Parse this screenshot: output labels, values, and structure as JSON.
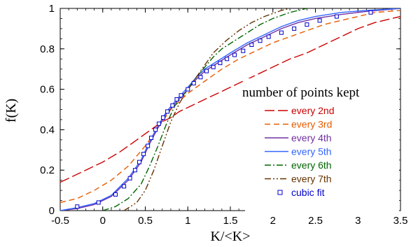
{
  "chart_data": {
    "type": "line",
    "xlabel": "K/<K>",
    "ylabel": "f(K)",
    "xlim": [
      -0.5,
      3.5
    ],
    "ylim": [
      0,
      1
    ],
    "x_ticks": [
      -0.5,
      0,
      0.5,
      1,
      1.5,
      2,
      2.5,
      3,
      3.5
    ],
    "x_tick_labels": [
      "-0.5",
      "0",
      "0.5",
      "1",
      "1.5",
      "2",
      "2.5",
      "3",
      "3.5"
    ],
    "y_ticks": [
      0,
      0.2,
      0.4,
      0.6,
      0.8,
      1
    ],
    "y_tick_labels": [
      "0",
      "0.2",
      "0.4",
      "0.6",
      "0.8",
      "1"
    ],
    "grid": false,
    "legend": {
      "title": "number of points kept",
      "placement": "right"
    },
    "series": [
      {
        "name": "every 2nd",
        "color": "#cc0000",
        "style": "long-dash",
        "points": [
          [
            -0.5,
            0.14
          ],
          [
            -0.35,
            0.17
          ],
          [
            -0.2,
            0.2
          ],
          [
            0,
            0.24
          ],
          [
            0.2,
            0.29
          ],
          [
            0.4,
            0.35
          ],
          [
            0.5,
            0.38
          ],
          [
            0.6,
            0.41
          ],
          [
            0.7,
            0.44
          ],
          [
            0.8,
            0.46
          ],
          [
            0.9,
            0.49
          ],
          [
            1,
            0.51
          ],
          [
            1.2,
            0.55
          ],
          [
            1.4,
            0.59
          ],
          [
            1.6,
            0.63
          ],
          [
            1.8,
            0.67
          ],
          [
            2,
            0.71
          ],
          [
            2.2,
            0.75
          ],
          [
            2.4,
            0.78
          ],
          [
            2.6,
            0.82
          ],
          [
            2.8,
            0.86
          ],
          [
            3,
            0.9
          ],
          [
            3.2,
            0.93
          ],
          [
            3.4,
            0.95
          ],
          [
            3.5,
            0.96
          ]
        ]
      },
      {
        "name": "every 3rd",
        "color": "#e65c00",
        "style": "dash",
        "points": [
          [
            -0.5,
            0.04
          ],
          [
            -0.3,
            0.06
          ],
          [
            -0.1,
            0.1
          ],
          [
            0.1,
            0.15
          ],
          [
            0.3,
            0.22
          ],
          [
            0.5,
            0.32
          ],
          [
            0.6,
            0.38
          ],
          [
            0.7,
            0.44
          ],
          [
            0.8,
            0.5
          ],
          [
            0.9,
            0.54
          ],
          [
            1,
            0.58
          ],
          [
            1.2,
            0.64
          ],
          [
            1.4,
            0.7
          ],
          [
            1.6,
            0.75
          ],
          [
            1.8,
            0.79
          ],
          [
            2,
            0.83
          ],
          [
            2.2,
            0.86
          ],
          [
            2.4,
            0.89
          ],
          [
            2.6,
            0.92
          ],
          [
            2.8,
            0.94
          ],
          [
            3,
            0.96
          ],
          [
            3.2,
            0.98
          ],
          [
            3.5,
            0.99
          ]
        ]
      },
      {
        "name": "every 4th",
        "color": "#7030a0",
        "style": "solid",
        "points": [
          [
            -0.5,
            0.0
          ],
          [
            -0.3,
            0.01
          ],
          [
            -0.1,
            0.03
          ],
          [
            0.1,
            0.07
          ],
          [
            0.3,
            0.15
          ],
          [
            0.45,
            0.24
          ],
          [
            0.55,
            0.33
          ],
          [
            0.65,
            0.41
          ],
          [
            0.75,
            0.48
          ],
          [
            0.85,
            0.53
          ],
          [
            1,
            0.6
          ],
          [
            1.1,
            0.65
          ],
          [
            1.2,
            0.69
          ],
          [
            1.35,
            0.73
          ],
          [
            1.5,
            0.77
          ],
          [
            1.7,
            0.82
          ],
          [
            1.9,
            0.86
          ],
          [
            2.1,
            0.9
          ],
          [
            2.3,
            0.93
          ],
          [
            2.5,
            0.95
          ],
          [
            2.8,
            0.97
          ],
          [
            3.1,
            0.985
          ],
          [
            3.5,
            1.0
          ]
        ]
      },
      {
        "name": "every 5th",
        "color": "#3366ff",
        "style": "solid",
        "points": [
          [
            -0.5,
            0.0
          ],
          [
            -0.3,
            0.015
          ],
          [
            -0.1,
            0.035
          ],
          [
            0.1,
            0.075
          ],
          [
            0.3,
            0.16
          ],
          [
            0.45,
            0.25
          ],
          [
            0.55,
            0.34
          ],
          [
            0.65,
            0.42
          ],
          [
            0.75,
            0.49
          ],
          [
            0.85,
            0.54
          ],
          [
            1,
            0.61
          ],
          [
            1.1,
            0.66
          ],
          [
            1.2,
            0.7
          ],
          [
            1.35,
            0.74
          ],
          [
            1.5,
            0.78
          ],
          [
            1.7,
            0.83
          ],
          [
            1.9,
            0.87
          ],
          [
            2.1,
            0.91
          ],
          [
            2.3,
            0.94
          ],
          [
            2.5,
            0.96
          ],
          [
            2.8,
            0.98
          ],
          [
            3.1,
            0.99
          ],
          [
            3.5,
            1.0
          ]
        ]
      },
      {
        "name": "every 6th",
        "color": "#006600",
        "style": "dash-dot",
        "points": [
          [
            0,
            0.0
          ],
          [
            0.15,
            0.02
          ],
          [
            0.3,
            0.06
          ],
          [
            0.45,
            0.13
          ],
          [
            0.55,
            0.22
          ],
          [
            0.65,
            0.32
          ],
          [
            0.75,
            0.43
          ],
          [
            0.85,
            0.52
          ],
          [
            1,
            0.6
          ],
          [
            1.1,
            0.66
          ],
          [
            1.2,
            0.71
          ],
          [
            1.3,
            0.76
          ],
          [
            1.4,
            0.8
          ],
          [
            1.55,
            0.84
          ],
          [
            1.7,
            0.88
          ],
          [
            1.85,
            0.92
          ],
          [
            2,
            0.95
          ],
          [
            2.2,
            0.98
          ],
          [
            2.4,
            1.0
          ]
        ]
      },
      {
        "name": "every 7th",
        "color": "#663300",
        "style": "dash-dot-dot",
        "points": [
          [
            0.25,
            0.0
          ],
          [
            0.4,
            0.04
          ],
          [
            0.5,
            0.1
          ],
          [
            0.6,
            0.2
          ],
          [
            0.7,
            0.32
          ],
          [
            0.8,
            0.44
          ],
          [
            0.9,
            0.53
          ],
          [
            1,
            0.6
          ],
          [
            1.1,
            0.66
          ],
          [
            1.2,
            0.72
          ],
          [
            1.3,
            0.78
          ],
          [
            1.45,
            0.84
          ],
          [
            1.6,
            0.89
          ],
          [
            1.75,
            0.93
          ],
          [
            1.9,
            0.96
          ],
          [
            2.1,
            0.99
          ],
          [
            2.2,
            1.0
          ]
        ]
      },
      {
        "name": "cubic fit",
        "color": "#0000cc",
        "style": "markers-square",
        "points": [
          [
            -0.3,
            0.02
          ],
          [
            -0.05,
            0.04
          ],
          [
            0.15,
            0.08
          ],
          [
            0.25,
            0.12
          ],
          [
            0.32,
            0.16
          ],
          [
            0.38,
            0.2
          ],
          [
            0.43,
            0.24
          ],
          [
            0.48,
            0.28
          ],
          [
            0.53,
            0.32
          ],
          [
            0.57,
            0.36
          ],
          [
            0.62,
            0.4
          ],
          [
            0.66,
            0.43
          ],
          [
            0.71,
            0.46
          ],
          [
            0.76,
            0.49
          ],
          [
            0.82,
            0.52
          ],
          [
            0.87,
            0.55
          ],
          [
            0.92,
            0.57
          ],
          [
            1.0,
            0.6
          ],
          [
            1.07,
            0.63
          ],
          [
            1.15,
            0.66
          ],
          [
            1.22,
            0.69
          ],
          [
            1.3,
            0.71
          ],
          [
            1.38,
            0.73
          ],
          [
            1.46,
            0.75
          ],
          [
            1.55,
            0.77
          ],
          [
            1.65,
            0.79
          ],
          [
            1.75,
            0.82
          ],
          [
            1.85,
            0.84
          ],
          [
            1.95,
            0.86
          ],
          [
            2.1,
            0.88
          ],
          [
            2.25,
            0.9
          ],
          [
            2.4,
            0.92
          ],
          [
            2.55,
            0.94
          ],
          [
            2.75,
            0.96
          ],
          [
            3.15,
            0.98
          ]
        ]
      }
    ]
  }
}
